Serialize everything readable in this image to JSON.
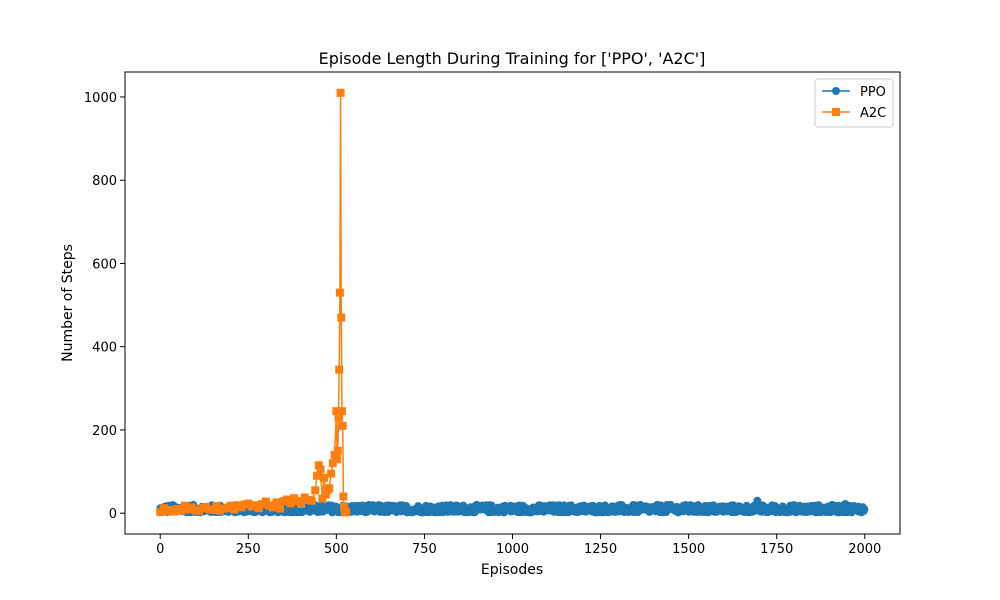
{
  "chart_data": {
    "type": "line",
    "title": "Episode Length During Training for ['PPO', 'A2C']",
    "xlabel": "Episodes",
    "ylabel": "Number of Steps",
    "xlim": [
      -100,
      2100
    ],
    "ylim": [
      -50,
      1060
    ],
    "xticks": [
      0,
      250,
      500,
      750,
      1000,
      1250,
      1500,
      1750,
      2000
    ],
    "yticks": [
      0,
      200,
      400,
      600,
      800,
      1000
    ],
    "grid": false,
    "legend_position": "top-right",
    "series": [
      {
        "name": "PPO",
        "color": "#1f77b4",
        "marker": "circle",
        "x_range": [
          0,
          2000
        ],
        "points": 2000,
        "typical_range": [
          2,
          20
        ],
        "peaks": [
          [
            1060,
            18
          ],
          [
            1340,
            20
          ],
          [
            1480,
            27
          ],
          [
            1600,
            22
          ],
          [
            1695,
            30
          ],
          [
            1900,
            24
          ],
          [
            1945,
            22
          ]
        ]
      },
      {
        "name": "A2C",
        "color": "#ff7f0e",
        "marker": "square",
        "x": [
          0,
          10,
          20,
          30,
          40,
          50,
          60,
          70,
          80,
          90,
          100,
          110,
          120,
          130,
          140,
          150,
          160,
          170,
          180,
          190,
          200,
          210,
          220,
          230,
          240,
          250,
          260,
          270,
          280,
          290,
          300,
          310,
          320,
          330,
          340,
          350,
          360,
          370,
          380,
          390,
          400,
          410,
          420,
          430,
          440,
          445,
          450,
          455,
          460,
          465,
          470,
          475,
          480,
          485,
          490,
          495,
          500,
          502,
          504,
          506,
          508,
          510,
          512,
          514,
          516,
          518,
          520,
          522,
          524,
          526,
          528
        ],
        "y": [
          3,
          12,
          5,
          8,
          4,
          10,
          6,
          18,
          9,
          14,
          7,
          5,
          12,
          15,
          9,
          8,
          17,
          6,
          11,
          13,
          18,
          9,
          19,
          14,
          21,
          23,
          16,
          19,
          12,
          22,
          28,
          18,
          14,
          26,
          11,
          29,
          33,
          24,
          36,
          29,
          22,
          38,
          32,
          30,
          55,
          90,
          115,
          105,
          35,
          85,
          45,
          55,
          60,
          95,
          120,
          140,
          245,
          130,
          150,
          230,
          345,
          530,
          1010,
          470,
          245,
          210,
          40,
          15,
          5,
          2,
          3
        ]
      }
    ]
  }
}
